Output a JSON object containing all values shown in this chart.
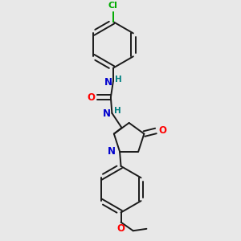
{
  "background_color": "#e8e8e8",
  "bond_color": "#1a1a1a",
  "N_color": "#0000cd",
  "O_color": "#ff0000",
  "Cl_color": "#00aa00",
  "H_color": "#008080",
  "figsize": [
    3.0,
    3.0
  ],
  "dpi": 100,
  "xlim": [
    0.15,
    0.85
  ],
  "ylim": [
    0.02,
    0.98
  ]
}
